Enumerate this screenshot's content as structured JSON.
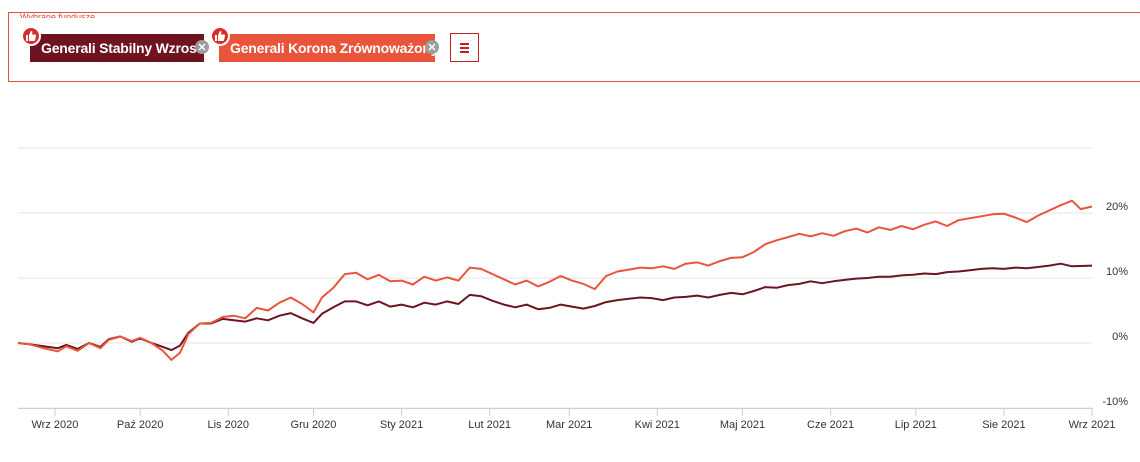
{
  "filter_panel": {
    "title": "Wybrane fundusze",
    "chips": [
      {
        "label": "Generali Stabilny Wzrost",
        "color": "#6e1421"
      },
      {
        "label": "Generali Korona Zrównoważony",
        "color": "#e8553b"
      }
    ],
    "badge_icon": "thumbs-up-icon",
    "remove_icon": "remove-icon",
    "menu_icon": "hamburger-menu-icon",
    "accent_color": "#c7211e"
  },
  "chart_data": {
    "type": "line",
    "title": "",
    "xlabel": "",
    "ylabel": "",
    "ylim": [
      -10,
      30
    ],
    "y_ticks": [
      -10,
      0,
      10,
      20
    ],
    "y_tick_labels": [
      "-10%",
      "0%",
      "10%",
      "20%"
    ],
    "grid": true,
    "y_axis_position": "right",
    "legend": "none",
    "x_range": [
      "2020-08-19",
      "2021-09-01"
    ],
    "x_ticks": [
      {
        "date": "2020-09-01",
        "label": "Wrz 2020"
      },
      {
        "date": "2020-10-01",
        "label": "Paź 2020"
      },
      {
        "date": "2020-11-01",
        "label": "Lis 2020"
      },
      {
        "date": "2020-12-01",
        "label": "Gru 2020"
      },
      {
        "date": "2021-01-01",
        "label": "Sty 2021"
      },
      {
        "date": "2021-02-01",
        "label": "Lut 2021"
      },
      {
        "date": "2021-03-01",
        "label": "Mar 2021"
      },
      {
        "date": "2021-04-01",
        "label": "Kwi 2021"
      },
      {
        "date": "2021-05-01",
        "label": "Maj 2021"
      },
      {
        "date": "2021-06-01",
        "label": "Cze 2021"
      },
      {
        "date": "2021-07-01",
        "label": "Lip 2021"
      },
      {
        "date": "2021-08-01",
        "label": "Sie 2021"
      },
      {
        "date": "2021-09-01",
        "label": "Wrz 2021"
      }
    ],
    "series": [
      {
        "name": "Generali Stabilny Wzrost",
        "color": "#6e1421",
        "points": [
          [
            "2020-08-19",
            0.0
          ],
          [
            "2020-08-23",
            -0.2
          ],
          [
            "2020-08-28",
            -0.5
          ],
          [
            "2020-09-02",
            -0.8
          ],
          [
            "2020-09-05",
            -0.3
          ],
          [
            "2020-09-09",
            -0.9
          ],
          [
            "2020-09-13",
            0.0
          ],
          [
            "2020-09-17",
            -0.6
          ],
          [
            "2020-09-20",
            0.6
          ],
          [
            "2020-09-24",
            1.0
          ],
          [
            "2020-09-28",
            0.2
          ],
          [
            "2020-10-01",
            0.7
          ],
          [
            "2020-10-05",
            0.0
          ],
          [
            "2020-10-09",
            -0.6
          ],
          [
            "2020-10-12",
            -1.1
          ],
          [
            "2020-10-15",
            -0.4
          ],
          [
            "2020-10-18",
            1.6
          ],
          [
            "2020-10-22",
            3.0
          ],
          [
            "2020-10-26",
            3.0
          ],
          [
            "2020-10-30",
            3.7
          ],
          [
            "2020-11-03",
            3.5
          ],
          [
            "2020-11-07",
            3.3
          ],
          [
            "2020-11-11",
            3.8
          ],
          [
            "2020-11-15",
            3.5
          ],
          [
            "2020-11-19",
            4.2
          ],
          [
            "2020-11-23",
            4.6
          ],
          [
            "2020-11-27",
            3.8
          ],
          [
            "2020-12-01",
            3.1
          ],
          [
            "2020-12-04",
            4.5
          ],
          [
            "2020-12-08",
            5.5
          ],
          [
            "2020-12-12",
            6.4
          ],
          [
            "2020-12-16",
            6.4
          ],
          [
            "2020-12-20",
            5.8
          ],
          [
            "2020-12-24",
            6.4
          ],
          [
            "2020-12-28",
            5.6
          ],
          [
            "2021-01-01",
            5.9
          ],
          [
            "2021-01-05",
            5.5
          ],
          [
            "2021-01-09",
            6.2
          ],
          [
            "2021-01-13",
            5.9
          ],
          [
            "2021-01-17",
            6.4
          ],
          [
            "2021-01-21",
            6.0
          ],
          [
            "2021-01-25",
            7.4
          ],
          [
            "2021-01-29",
            7.2
          ],
          [
            "2021-02-02",
            6.5
          ],
          [
            "2021-02-06",
            5.9
          ],
          [
            "2021-02-10",
            5.5
          ],
          [
            "2021-02-14",
            5.9
          ],
          [
            "2021-02-18",
            5.2
          ],
          [
            "2021-02-22",
            5.4
          ],
          [
            "2021-02-26",
            5.9
          ],
          [
            "2021-03-02",
            5.6
          ],
          [
            "2021-03-06",
            5.3
          ],
          [
            "2021-03-10",
            5.7
          ],
          [
            "2021-03-14",
            6.3
          ],
          [
            "2021-03-18",
            6.6
          ],
          [
            "2021-03-22",
            6.8
          ],
          [
            "2021-03-26",
            7.0
          ],
          [
            "2021-03-30",
            6.9
          ],
          [
            "2021-04-03",
            6.6
          ],
          [
            "2021-04-07",
            7.0
          ],
          [
            "2021-04-11",
            7.1
          ],
          [
            "2021-04-15",
            7.3
          ],
          [
            "2021-04-19",
            7.0
          ],
          [
            "2021-04-23",
            7.4
          ],
          [
            "2021-04-27",
            7.7
          ],
          [
            "2021-05-01",
            7.5
          ],
          [
            "2021-05-05",
            8.0
          ],
          [
            "2021-05-09",
            8.6
          ],
          [
            "2021-05-13",
            8.5
          ],
          [
            "2021-05-17",
            8.9
          ],
          [
            "2021-05-21",
            9.1
          ],
          [
            "2021-05-25",
            9.5
          ],
          [
            "2021-05-29",
            9.2
          ],
          [
            "2021-06-02",
            9.5
          ],
          [
            "2021-06-06",
            9.7
          ],
          [
            "2021-06-10",
            9.9
          ],
          [
            "2021-06-14",
            10.0
          ],
          [
            "2021-06-18",
            10.2
          ],
          [
            "2021-06-22",
            10.2
          ],
          [
            "2021-06-26",
            10.4
          ],
          [
            "2021-06-30",
            10.5
          ],
          [
            "2021-07-04",
            10.7
          ],
          [
            "2021-07-08",
            10.6
          ],
          [
            "2021-07-12",
            10.9
          ],
          [
            "2021-07-16",
            11.0
          ],
          [
            "2021-07-20",
            11.2
          ],
          [
            "2021-07-24",
            11.4
          ],
          [
            "2021-07-28",
            11.5
          ],
          [
            "2021-08-01",
            11.4
          ],
          [
            "2021-08-05",
            11.6
          ],
          [
            "2021-08-09",
            11.5
          ],
          [
            "2021-08-13",
            11.7
          ],
          [
            "2021-08-17",
            11.9
          ],
          [
            "2021-08-21",
            12.2
          ],
          [
            "2021-08-25",
            11.8
          ],
          [
            "2021-09-01",
            11.9
          ]
        ]
      },
      {
        "name": "Generali Korona Zrównoważony",
        "color": "#e8553b",
        "points": [
          [
            "2020-08-19",
            0.0
          ],
          [
            "2020-08-23",
            -0.2
          ],
          [
            "2020-08-28",
            -0.8
          ],
          [
            "2020-09-02",
            -1.3
          ],
          [
            "2020-09-05",
            -0.5
          ],
          [
            "2020-09-09",
            -1.2
          ],
          [
            "2020-09-13",
            0.0
          ],
          [
            "2020-09-17",
            -0.8
          ],
          [
            "2020-09-20",
            0.5
          ],
          [
            "2020-09-24",
            1.0
          ],
          [
            "2020-09-28",
            0.3
          ],
          [
            "2020-10-01",
            0.8
          ],
          [
            "2020-10-05",
            0.0
          ],
          [
            "2020-10-09",
            -1.2
          ],
          [
            "2020-10-12",
            -2.6
          ],
          [
            "2020-10-15",
            -1.5
          ],
          [
            "2020-10-18",
            1.4
          ],
          [
            "2020-10-22",
            3.0
          ],
          [
            "2020-10-26",
            3.1
          ],
          [
            "2020-10-30",
            4.0
          ],
          [
            "2020-11-03",
            4.2
          ],
          [
            "2020-11-07",
            3.8
          ],
          [
            "2020-11-11",
            5.4
          ],
          [
            "2020-11-15",
            5.0
          ],
          [
            "2020-11-19",
            6.2
          ],
          [
            "2020-11-23",
            7.0
          ],
          [
            "2020-11-27",
            6.0
          ],
          [
            "2020-12-01",
            4.7
          ],
          [
            "2020-12-04",
            7.0
          ],
          [
            "2020-12-08",
            8.5
          ],
          [
            "2020-12-12",
            10.6
          ],
          [
            "2020-12-16",
            10.8
          ],
          [
            "2020-12-20",
            9.8
          ],
          [
            "2020-12-24",
            10.5
          ],
          [
            "2020-12-28",
            9.5
          ],
          [
            "2021-01-01",
            9.6
          ],
          [
            "2021-01-05",
            9.0
          ],
          [
            "2021-01-09",
            10.2
          ],
          [
            "2021-01-13",
            9.6
          ],
          [
            "2021-01-17",
            10.1
          ],
          [
            "2021-01-21",
            9.6
          ],
          [
            "2021-01-25",
            11.6
          ],
          [
            "2021-01-29",
            11.4
          ],
          [
            "2021-02-02",
            10.6
          ],
          [
            "2021-02-06",
            9.8
          ],
          [
            "2021-02-10",
            9.0
          ],
          [
            "2021-02-14",
            9.6
          ],
          [
            "2021-02-18",
            8.7
          ],
          [
            "2021-02-22",
            9.4
          ],
          [
            "2021-02-26",
            10.3
          ],
          [
            "2021-03-02",
            9.6
          ],
          [
            "2021-03-06",
            9.1
          ],
          [
            "2021-03-10",
            8.3
          ],
          [
            "2021-03-14",
            10.3
          ],
          [
            "2021-03-18",
            11.0
          ],
          [
            "2021-03-22",
            11.3
          ],
          [
            "2021-03-26",
            11.6
          ],
          [
            "2021-03-30",
            11.5
          ],
          [
            "2021-04-03",
            11.8
          ],
          [
            "2021-04-07",
            11.4
          ],
          [
            "2021-04-11",
            12.2
          ],
          [
            "2021-04-15",
            12.4
          ],
          [
            "2021-04-19",
            11.9
          ],
          [
            "2021-04-23",
            12.6
          ],
          [
            "2021-04-27",
            13.1
          ],
          [
            "2021-05-01",
            13.2
          ],
          [
            "2021-05-05",
            14.0
          ],
          [
            "2021-05-09",
            15.2
          ],
          [
            "2021-05-13",
            15.8
          ],
          [
            "2021-05-17",
            16.3
          ],
          [
            "2021-05-21",
            16.8
          ],
          [
            "2021-05-25",
            16.4
          ],
          [
            "2021-05-29",
            16.9
          ],
          [
            "2021-06-02",
            16.5
          ],
          [
            "2021-06-06",
            17.2
          ],
          [
            "2021-06-10",
            17.6
          ],
          [
            "2021-06-14",
            17.0
          ],
          [
            "2021-06-18",
            17.8
          ],
          [
            "2021-06-22",
            17.4
          ],
          [
            "2021-06-26",
            18.0
          ],
          [
            "2021-06-30",
            17.5
          ],
          [
            "2021-07-04",
            18.2
          ],
          [
            "2021-07-08",
            18.7
          ],
          [
            "2021-07-12",
            18.0
          ],
          [
            "2021-07-16",
            18.9
          ],
          [
            "2021-07-20",
            19.2
          ],
          [
            "2021-07-24",
            19.5
          ],
          [
            "2021-07-28",
            19.8
          ],
          [
            "2021-08-01",
            19.9
          ],
          [
            "2021-08-05",
            19.3
          ],
          [
            "2021-08-09",
            18.6
          ],
          [
            "2021-08-13",
            19.6
          ],
          [
            "2021-08-17",
            20.4
          ],
          [
            "2021-08-21",
            21.2
          ],
          [
            "2021-08-25",
            21.9
          ],
          [
            "2021-08-28",
            20.6
          ],
          [
            "2021-09-01",
            21.0
          ]
        ]
      }
    ]
  }
}
